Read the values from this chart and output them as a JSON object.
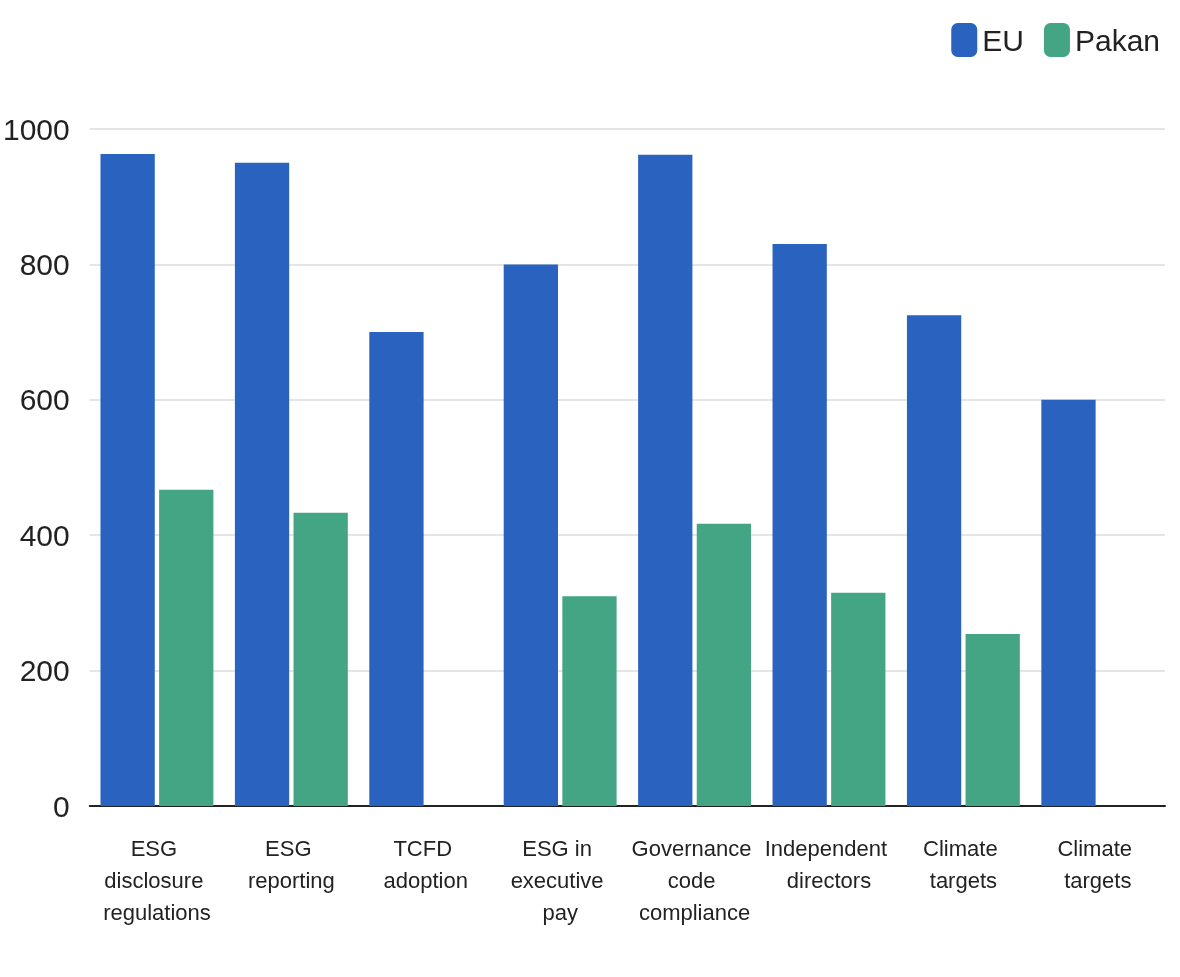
{
  "chart_data": {
    "type": "bar",
    "categories": [
      "ESG disclosure regulations",
      "ESG reporting",
      "TCFD adoption",
      "ESG in executive pay",
      "Governance code compliance",
      "Independent directors",
      "Climate targets",
      "Climate targets"
    ],
    "series": [
      {
        "name": "EU",
        "color": "#2962bf",
        "values": [
          963,
          950,
          700,
          800,
          962,
          830,
          725,
          600
        ]
      },
      {
        "name": "Pakan",
        "color": "#43a584",
        "values": [
          467,
          433,
          null,
          310,
          417,
          315,
          254,
          null
        ]
      }
    ],
    "ylim": [
      0,
      1000
    ],
    "yticks": [
      0,
      200,
      400,
      600,
      800,
      1000
    ],
    "grid": "y",
    "legend": "top right"
  }
}
